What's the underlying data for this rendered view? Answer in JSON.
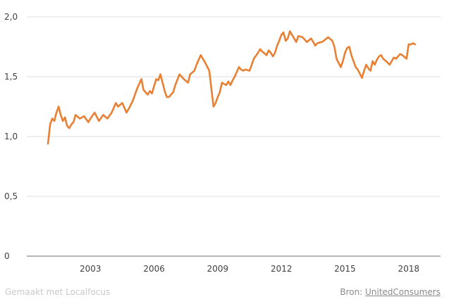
{
  "chart_data": {
    "type": "line",
    "title": "",
    "xlabel": "",
    "ylabel": "",
    "ylim": [
      0,
      2.0
    ],
    "y_ticks": [
      "0",
      "0,5",
      "1,0",
      "1,5",
      "2,0"
    ],
    "x_ticks": [
      "2003",
      "2006",
      "2009",
      "2012",
      "2015",
      "2018"
    ],
    "grid": "horizontal",
    "line_color": "#e87f33",
    "x": [
      2001.0,
      2001.1,
      2001.2,
      2001.3,
      2001.4,
      2001.5,
      2001.6,
      2001.7,
      2001.8,
      2001.9,
      2002.0,
      2002.1,
      2002.2,
      2002.3,
      2002.5,
      2002.7,
      2002.9,
      2003.0,
      2003.2,
      2003.4,
      2003.6,
      2003.8,
      2004.0,
      2004.2,
      2004.3,
      2004.5,
      2004.7,
      2004.8,
      2005.0,
      2005.2,
      2005.4,
      2005.5,
      2005.7,
      2005.8,
      2005.9,
      2006.0,
      2006.1,
      2006.2,
      2006.3,
      2006.5,
      2006.6,
      2006.7,
      2006.8,
      2006.9,
      2007.0,
      2007.2,
      2007.4,
      2007.6,
      2007.7,
      2007.9,
      2008.0,
      2008.2,
      2008.4,
      2008.6,
      2008.7,
      2008.8,
      2008.9,
      2009.0,
      2009.1,
      2009.2,
      2009.4,
      2009.5,
      2009.6,
      2009.7,
      2009.8,
      2010.0,
      2010.1,
      2010.2,
      2010.3,
      2010.5,
      2010.7,
      2010.9,
      2011.0,
      2011.1,
      2011.3,
      2011.4,
      2011.5,
      2011.6,
      2011.7,
      2011.8,
      2011.9,
      2012.0,
      2012.1,
      2012.2,
      2012.3,
      2012.4,
      2012.5,
      2012.7,
      2012.8,
      2013.0,
      2013.2,
      2013.4,
      2013.6,
      2013.7,
      2013.9,
      2014.0,
      2014.2,
      2014.4,
      2014.5,
      2014.6,
      2014.8,
      2014.9,
      2015.0,
      2015.1,
      2015.2,
      2015.3,
      2015.4,
      2015.5,
      2015.6,
      2015.8,
      2015.9,
      2016.0,
      2016.1,
      2016.2,
      2016.3,
      2016.4,
      2016.5,
      2016.6,
      2016.7,
      2016.8,
      2017.0,
      2017.1,
      2017.3,
      2017.4,
      2017.6,
      2017.7,
      2017.9,
      2018.0,
      2018.1,
      2018.2,
      2018.3
    ],
    "y": [
      0.94,
      1.1,
      1.15,
      1.13,
      1.2,
      1.25,
      1.18,
      1.13,
      1.16,
      1.09,
      1.07,
      1.1,
      1.12,
      1.18,
      1.15,
      1.17,
      1.12,
      1.15,
      1.2,
      1.13,
      1.18,
      1.15,
      1.2,
      1.28,
      1.25,
      1.28,
      1.2,
      1.23,
      1.3,
      1.4,
      1.48,
      1.39,
      1.35,
      1.38,
      1.36,
      1.42,
      1.48,
      1.47,
      1.52,
      1.38,
      1.33,
      1.33,
      1.35,
      1.37,
      1.43,
      1.52,
      1.48,
      1.45,
      1.52,
      1.55,
      1.6,
      1.68,
      1.62,
      1.55,
      1.4,
      1.25,
      1.28,
      1.33,
      1.37,
      1.45,
      1.43,
      1.46,
      1.43,
      1.47,
      1.5,
      1.58,
      1.56,
      1.55,
      1.56,
      1.55,
      1.65,
      1.7,
      1.73,
      1.71,
      1.68,
      1.72,
      1.7,
      1.67,
      1.7,
      1.76,
      1.8,
      1.85,
      1.87,
      1.8,
      1.82,
      1.88,
      1.85,
      1.79,
      1.84,
      1.83,
      1.79,
      1.82,
      1.76,
      1.78,
      1.79,
      1.8,
      1.83,
      1.8,
      1.75,
      1.65,
      1.58,
      1.63,
      1.7,
      1.74,
      1.75,
      1.68,
      1.63,
      1.58,
      1.56,
      1.49,
      1.55,
      1.6,
      1.57,
      1.55,
      1.63,
      1.6,
      1.64,
      1.67,
      1.68,
      1.65,
      1.62,
      1.6,
      1.66,
      1.65,
      1.69,
      1.68,
      1.65,
      1.77,
      1.77,
      1.78,
      1.77
    ]
  },
  "footer": {
    "made_with": "Gemaakt met Localfocus",
    "source_label": "Bron:",
    "source_link": "UnitedConsumers"
  }
}
